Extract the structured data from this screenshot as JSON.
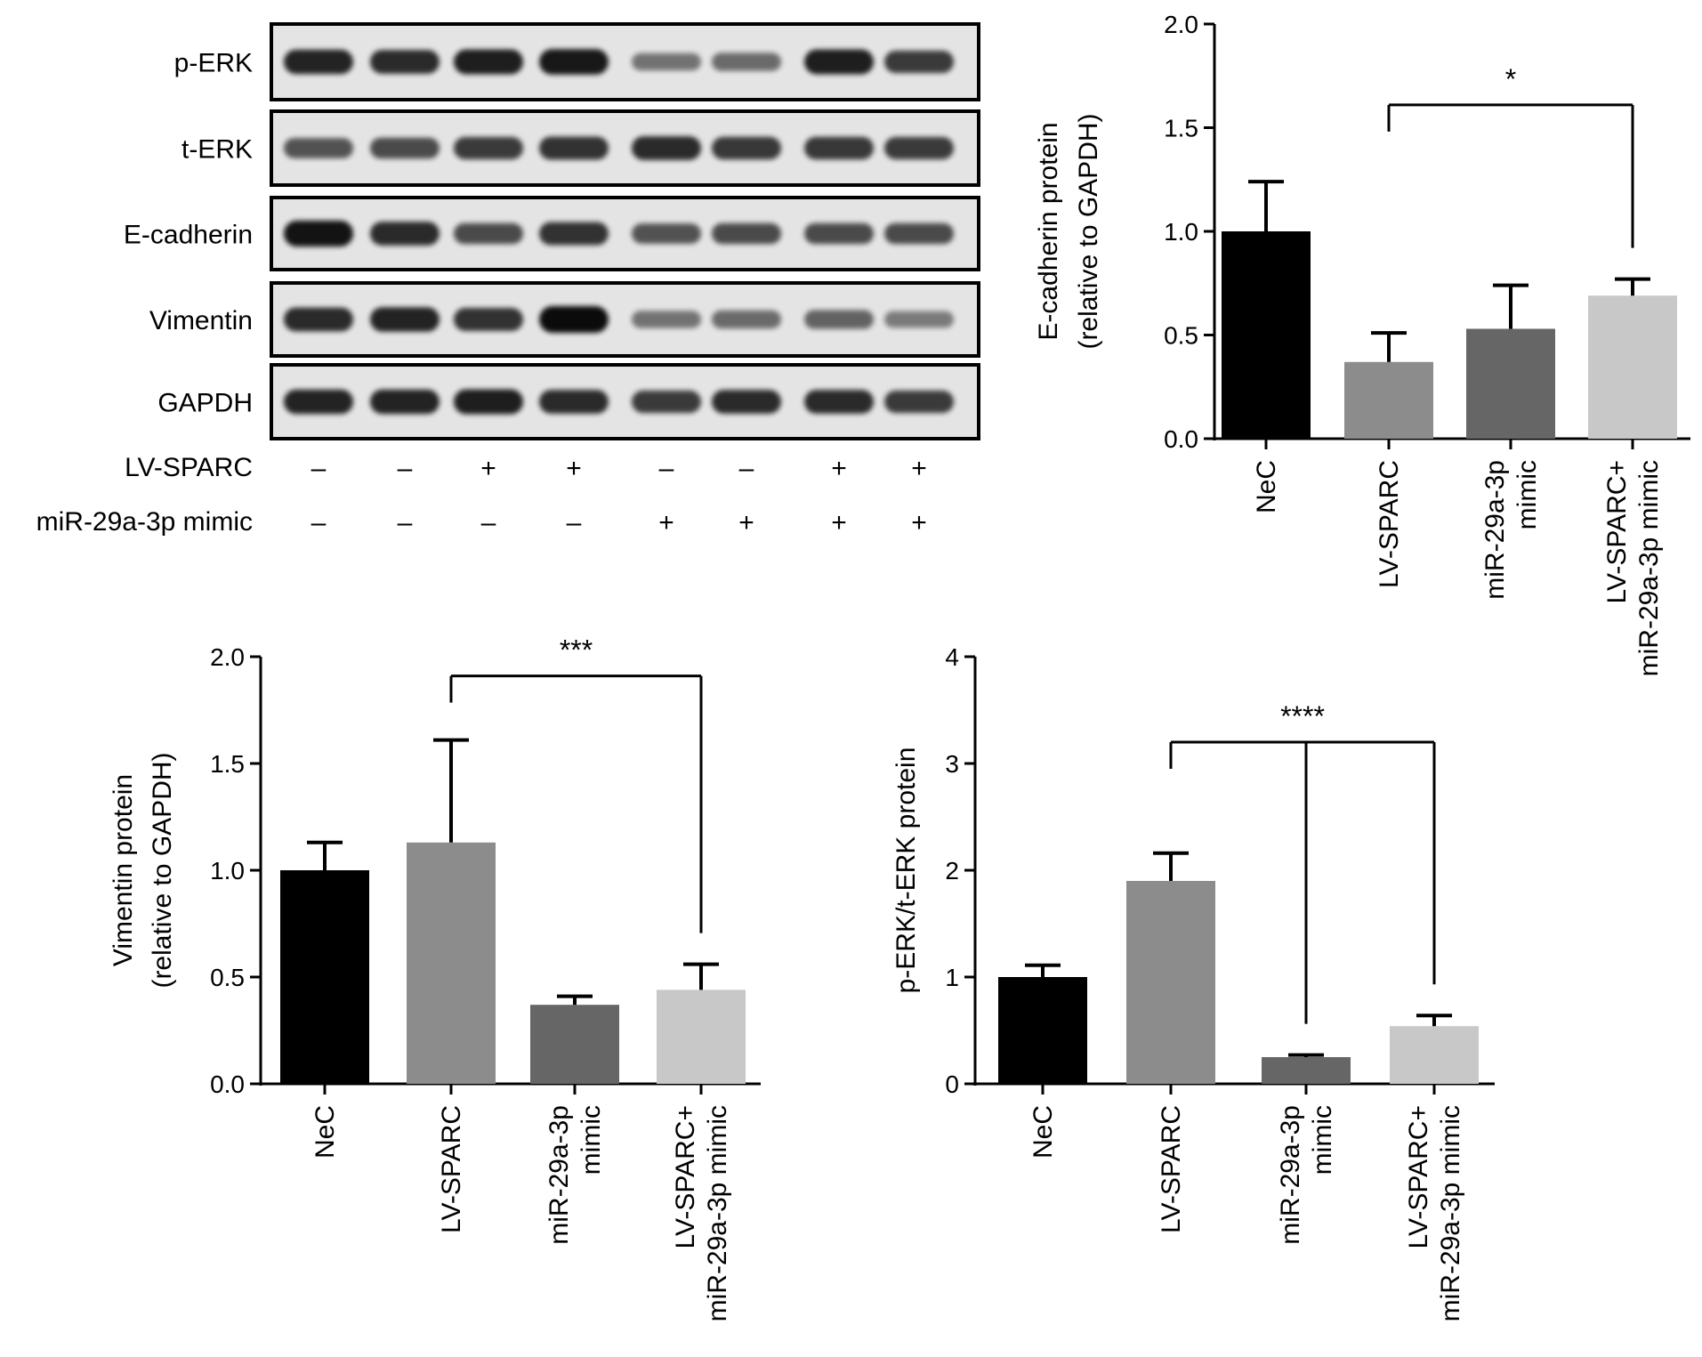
{
  "blot": {
    "proteins": [
      "p-ERK",
      "t-ERK",
      "E-cadherin",
      "Vimentin",
      "GAPDH"
    ],
    "conditions": [
      {
        "label": "LV-SPARC",
        "signs": [
          "–",
          "–",
          "+",
          "+",
          "–",
          "–",
          "+",
          "+"
        ]
      },
      {
        "label": "miR-29a-3p mimic",
        "signs": [
          "–",
          "–",
          "–",
          "–",
          "+",
          "+",
          "+",
          "+"
        ]
      }
    ],
    "band_intensity": [
      [
        0.85,
        0.8,
        0.88,
        0.92,
        0.35,
        0.4,
        0.88,
        0.7
      ],
      [
        0.55,
        0.6,
        0.7,
        0.75,
        0.8,
        0.72,
        0.72,
        0.7
      ],
      [
        0.95,
        0.8,
        0.6,
        0.75,
        0.55,
        0.6,
        0.6,
        0.6
      ],
      [
        0.8,
        0.85,
        0.75,
        1.0,
        0.35,
        0.4,
        0.45,
        0.3
      ],
      [
        0.85,
        0.85,
        0.88,
        0.8,
        0.7,
        0.8,
        0.8,
        0.7
      ]
    ]
  },
  "chart_data": [
    {
      "type": "bar",
      "categories": [
        [
          "NeC"
        ],
        [
          "LV-SPARC"
        ],
        [
          "miR-29a-3p",
          "mimic"
        ],
        [
          "LV-SPARC+",
          "miR-29a-3p mimic"
        ]
      ],
      "values": [
        1.0,
        0.37,
        0.53,
        0.69
      ],
      "errors": [
        0.24,
        0.14,
        0.21,
        0.08
      ],
      "ylabel": [
        "E-cadherin protein",
        "(relative to GAPDH)"
      ],
      "ylim": [
        0,
        2.0
      ],
      "yticks": [
        "0.0",
        "0.5",
        "1.0",
        "1.5",
        "2.0"
      ],
      "ytick_values": [
        0,
        0.5,
        1.0,
        1.5,
        2.0
      ],
      "colors": [
        "#000000",
        "#8c8c8c",
        "#666666",
        "#c8c8c8"
      ],
      "significance": [
        {
          "from": 1,
          "to": [
            3
          ],
          "label": "*",
          "level": 1.61
        }
      ]
    },
    {
      "type": "bar",
      "categories": [
        [
          "NeC"
        ],
        [
          "LV-SPARC"
        ],
        [
          "miR-29a-3p",
          "mimic"
        ],
        [
          "LV-SPARC+",
          "miR-29a-3p mimic"
        ]
      ],
      "values": [
        1.0,
        1.13,
        0.37,
        0.44
      ],
      "errors": [
        0.13,
        0.48,
        0.04,
        0.12
      ],
      "ylabel": [
        "Vimentin protein",
        "(relative to GAPDH)"
      ],
      "ylim": [
        0,
        2.0
      ],
      "yticks": [
        "0.0",
        "0.5",
        "1.0",
        "1.5",
        "2.0"
      ],
      "ytick_values": [
        0,
        0.5,
        1.0,
        1.5,
        2.0
      ],
      "colors": [
        "#000000",
        "#8c8c8c",
        "#666666",
        "#c8c8c8"
      ],
      "significance": [
        {
          "from": 1,
          "to": [
            3
          ],
          "label": "***",
          "level": 1.91
        }
      ]
    },
    {
      "type": "bar",
      "categories": [
        [
          "NeC"
        ],
        [
          "LV-SPARC"
        ],
        [
          "miR-29a-3p",
          "mimic"
        ],
        [
          "LV-SPARC+",
          "miR-29a-3p mimic"
        ]
      ],
      "values": [
        1.0,
        1.9,
        0.25,
        0.54
      ],
      "errors": [
        0.11,
        0.26,
        0.02,
        0.1
      ],
      "ylabel": [
        "p-ERK/t-ERK protein"
      ],
      "ylim": [
        0,
        4
      ],
      "yticks": [
        "0",
        "1",
        "2",
        "3",
        "4"
      ],
      "ytick_values": [
        0,
        1,
        2,
        3,
        4
      ],
      "colors": [
        "#000000",
        "#8c8c8c",
        "#666666",
        "#c8c8c8"
      ],
      "significance": [
        {
          "from": 1,
          "to": [
            2,
            3
          ],
          "label": "****",
          "level": 3.2
        }
      ]
    }
  ]
}
